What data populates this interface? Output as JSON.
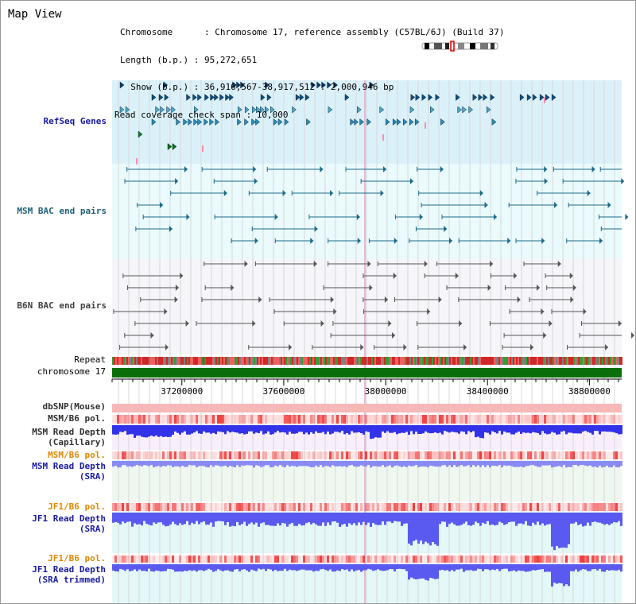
{
  "header": {
    "title": "Map View",
    "info_lines": [
      "Chromosome      : Chromosome 17, reference assembly (C57BL/6J) (Build 37)",
      "Length (b.p.) : 95,272,651",
      "  Show (b.p.) : 36,916,567-38,917,512 : 2,000,946 bp",
      "Read coverage check span : 10,000"
    ]
  },
  "tracks": [
    {
      "id": "refseq",
      "label": "RefSeq Genes",
      "color": "#1a1aa0"
    },
    {
      "id": "msm-bac",
      "label": "MSM BAC end pairs",
      "color": "#1f5f7a"
    },
    {
      "id": "b6n-bac",
      "label": "B6N BAC end pairs",
      "color": "#404040"
    },
    {
      "id": "repeat",
      "label": "Repeat",
      "color": "#000000"
    },
    {
      "id": "chromosome",
      "label": "chromosome 17",
      "color": "#000000"
    },
    {
      "id": "dbsnp",
      "label": "dbSNP(Mouse)",
      "color": "#303030"
    },
    {
      "id": "msm-b6-pol",
      "label": "MSM/B6 pol.",
      "color": "#303030"
    },
    {
      "id": "msm-depth-cap",
      "label": "MSM Read Depth\n(Capillary)",
      "color": "#303030"
    },
    {
      "id": "msm-b6-pol-2",
      "label": "MSM/B6 pol.",
      "color": "#e08800"
    },
    {
      "id": "msm-depth-sra",
      "label": "MSM Read Depth\n(SRA)",
      "color": "#1a1aa0"
    },
    {
      "id": "jf1-b6-pol",
      "label": "JF1/B6 pol.",
      "color": "#e08800"
    },
    {
      "id": "jf1-depth-sra",
      "label": "JF1 Read Depth\n(SRA)",
      "color": "#1a1aa0"
    },
    {
      "id": "jf1-b6-pol-2",
      "label": "JF1/B6 pol.",
      "color": "#e08800"
    },
    {
      "id": "jf1-depth-trim",
      "label": "JF1 Read Depth\n(SRA trimmed)",
      "color": "#1a1aa0"
    }
  ],
  "axis": {
    "tick_labels": [
      "37200000",
      "37600000",
      "38000000",
      "38400000",
      "38800000"
    ],
    "tick_values": [
      37200000,
      37600000,
      38000000,
      38400000,
      38800000
    ],
    "range": [
      36916567,
      38917512
    ]
  },
  "colors": {
    "refseq_bg": "#dbf1fa",
    "bac_bg": "#eafafd",
    "b6n_bg": "#f5f5fa",
    "cap_bg": "#f9eefc",
    "sra_bg": "#eef8f0",
    "jf1_bg": "#e4f7f9",
    "chromosome_bar": "#0a6e0a",
    "depth_blue": "#4646f0",
    "pol_red": "#f05050"
  },
  "icons": [
    "chromosome-ideogram-icon"
  ]
}
